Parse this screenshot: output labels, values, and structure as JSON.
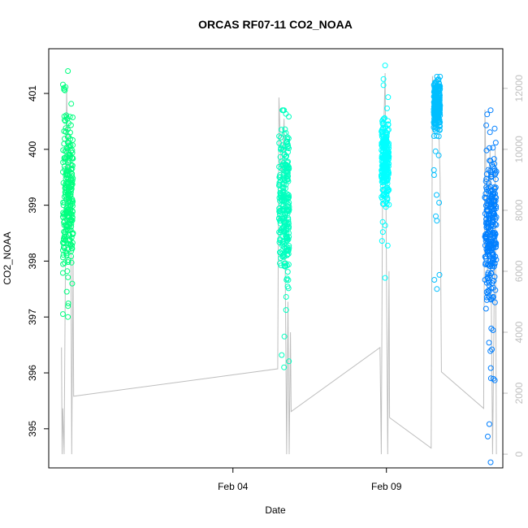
{
  "chart_data": {
    "type": "scatter",
    "title": "ORCAS RF07-11 CO2_NOAA",
    "xlabel": "Date",
    "ylabel": "CO2_NOAA",
    "x_ticks": [
      {
        "date": "2016-02-04",
        "label": "Feb 04"
      },
      {
        "date": "2016-02-09",
        "label": "Feb 09"
      }
    ],
    "xlim": [
      "2016-01-29T00:00",
      "2016-02-12T19:00"
    ],
    "ylim": [
      394.3,
      401.8
    ],
    "y_ticks": [
      395,
      396,
      397,
      398,
      399,
      400,
      401
    ],
    "y2_label": "",
    "y2lim": [
      -450,
      13300
    ],
    "y2_ticks": [
      0,
      2000,
      4000,
      6000,
      8000,
      10000,
      12000
    ],
    "grid": false,
    "marker": "open-circle",
    "series": [
      {
        "color": "#00ff7f",
        "segments": [
          {
            "start": "2016-01-29T11:00",
            "end": "2016-01-29T19:00",
            "center": 399.2,
            "spread": 1.2,
            "min": 397.0,
            "max": 401.4
          }
        ]
      },
      {
        "color": "#00ffbf",
        "segments": [
          {
            "start": "2016-02-05T12:00",
            "end": "2016-02-05T20:00",
            "center": 399.0,
            "spread": 1.3,
            "min": 396.1,
            "max": 400.7
          }
        ]
      },
      {
        "color": "#00ffff",
        "segments": [
          {
            "start": "2016-02-08T20:00",
            "end": "2016-02-09T02:00",
            "center": 399.8,
            "spread": 0.6,
            "min": 397.7,
            "max": 401.5
          }
        ]
      },
      {
        "color": "#00bfff",
        "segments": [
          {
            "start": "2016-02-10T13:00",
            "end": "2016-02-10T18:00",
            "center": 400.8,
            "spread": 0.4,
            "min": 397.5,
            "max": 401.3
          }
        ]
      },
      {
        "color": "#007fff",
        "segments": [
          {
            "start": "2016-02-12T05:00",
            "end": "2016-02-12T14:00",
            "center": 398.6,
            "spread": 1.3,
            "min": 394.4,
            "max": 400.7
          }
        ]
      }
    ],
    "altitude_line": {
      "color": "#bebebe",
      "points": [
        [
          "2016-01-29T10:00",
          3500
        ],
        [
          "2016-01-29T10:30",
          0
        ],
        [
          "2016-01-29T11:00",
          1500
        ],
        [
          "2016-01-29T12:00",
          0
        ],
        [
          "2016-01-29T13:00",
          6000
        ],
        [
          "2016-01-29T14:00",
          12000
        ],
        [
          "2016-01-29T15:30",
          8000
        ],
        [
          "2016-01-29T17:00",
          10000
        ],
        [
          "2016-01-29T18:00",
          0
        ],
        [
          "2016-01-29T19:00",
          6500
        ],
        [
          "2016-01-29T19:30",
          1900
        ],
        [
          "2016-02-05T11:00",
          2800
        ],
        [
          "2016-02-05T12:00",
          11700
        ],
        [
          "2016-02-05T14:00",
          9000
        ],
        [
          "2016-02-05T16:00",
          11000
        ],
        [
          "2016-02-05T18:00",
          0
        ],
        [
          "2016-02-05T19:00",
          5000
        ],
        [
          "2016-02-05T20:00",
          0
        ],
        [
          "2016-02-05T21:00",
          4000
        ],
        [
          "2016-02-05T21:30",
          1400
        ],
        [
          "2016-02-08T19:00",
          3500
        ],
        [
          "2016-02-08T20:00",
          0
        ],
        [
          "2016-02-08T21:00",
          9000
        ],
        [
          "2016-02-08T23:00",
          12500
        ],
        [
          "2016-02-09T01:00",
          0
        ],
        [
          "2016-02-09T02:00",
          6000
        ],
        [
          "2016-02-09T02:30",
          1200
        ],
        [
          "2016-02-10T11:00",
          200
        ],
        [
          "2016-02-10T12:00",
          12400
        ],
        [
          "2016-02-10T14:00",
          11000
        ],
        [
          "2016-02-10T16:00",
          12300
        ],
        [
          "2016-02-10T18:00",
          9000
        ],
        [
          "2016-02-10T19:00",
          2700
        ],
        [
          "2016-02-12T04:00",
          1500
        ],
        [
          "2016-02-12T05:00",
          11300
        ],
        [
          "2016-02-12T07:00",
          6000
        ],
        [
          "2016-02-12T09:00",
          10000
        ],
        [
          "2016-02-12T11:00",
          0
        ],
        [
          "2016-02-12T12:00",
          4000
        ],
        [
          "2016-02-12T13:00",
          10000
        ],
        [
          "2016-02-12T14:00",
          0
        ]
      ]
    }
  }
}
